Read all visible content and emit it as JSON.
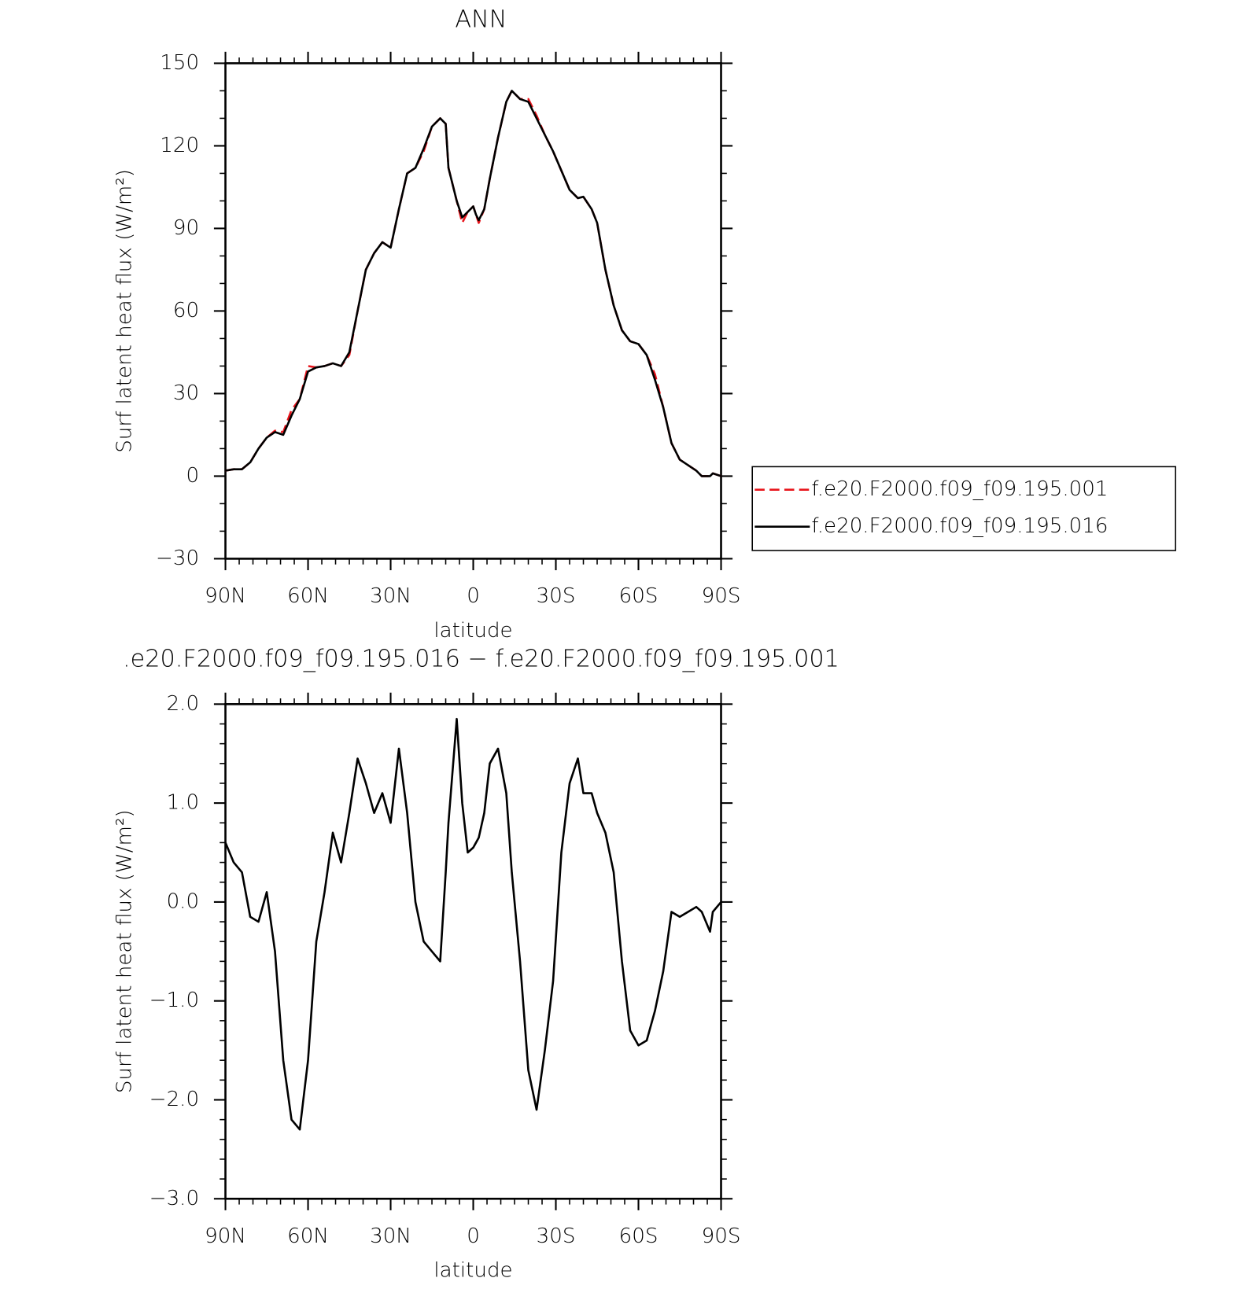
{
  "chart_data": [
    {
      "type": "line",
      "title": "ANN",
      "xlabel": "latitude",
      "ylabel": "Surf latent heat flux (W/m²)",
      "x": [
        90,
        87,
        84,
        81,
        78,
        75,
        72,
        69,
        66,
        63,
        60,
        57,
        54,
        51,
        48,
        45,
        42,
        39,
        36,
        33,
        30,
        27,
        24,
        21,
        18,
        15,
        12,
        10,
        9,
        6,
        4,
        2,
        0,
        -1,
        -2,
        -4,
        -6,
        -9,
        -12,
        -14,
        -17,
        -20,
        -23,
        -26,
        -29,
        -32,
        -35,
        -38,
        -40,
        -43,
        -45,
        -48,
        -51,
        -54,
        -57,
        -60,
        -63,
        -66,
        -69,
        -72,
        -75,
        -78,
        -81,
        -83,
        -86,
        -87,
        -90
      ],
      "series": [
        {
          "name": "f.e20.F2000.f09_f09.195.001",
          "color": "#e8141b",
          "dash": true,
          "values": [
            2,
            2.5,
            2.5,
            5,
            10,
            14,
            16.5,
            16,
            24,
            28,
            40,
            39.5,
            40,
            41,
            40,
            44,
            60,
            75,
            81,
            85,
            83,
            97,
            110,
            112,
            118,
            127,
            130,
            128,
            112,
            100,
            92,
            96,
            98,
            95,
            92,
            97,
            108,
            123,
            136,
            140,
            137,
            137,
            131,
            124,
            118,
            111,
            104,
            101,
            101.5,
            97,
            92,
            75,
            62,
            53,
            49,
            48,
            44,
            37,
            25,
            12,
            6,
            4,
            2,
            0,
            0,
            1,
            0
          ]
        },
        {
          "name": "f.e20.F2000.f09_f09.195.016",
          "color": "#000000",
          "dash": false,
          "values": [
            2,
            2.5,
            2.5,
            5,
            10,
            14,
            16,
            15,
            22,
            28,
            38,
            39.5,
            40,
            41,
            40,
            45,
            60,
            75,
            81,
            85,
            83,
            97,
            110,
            112,
            119,
            127,
            130,
            128,
            112,
            100,
            94,
            96,
            98,
            95,
            93,
            97,
            108,
            123,
            136,
            140,
            137,
            136,
            130,
            124,
            118,
            111,
            104,
            101,
            101.5,
            97,
            92,
            75,
            62,
            53,
            49,
            48,
            44,
            35,
            25,
            12,
            6,
            4,
            2,
            0,
            0,
            1,
            0
          ]
        }
      ],
      "xlim": [
        90,
        -90
      ],
      "xticks": [
        {
          "value": 90,
          "label": "90N"
        },
        {
          "value": 60,
          "label": "60N"
        },
        {
          "value": 30,
          "label": "30N"
        },
        0,
        {
          "value": -30,
          "label": "30S"
        },
        {
          "value": -60,
          "label": "60S"
        },
        {
          "value": -90,
          "label": "90S"
        }
      ],
      "ylim": [
        -30,
        150
      ],
      "yticks": [
        {
          "value": -30,
          "label": "−30"
        },
        0,
        30,
        60,
        90,
        120,
        150
      ],
      "legend": "right"
    },
    {
      "type": "line",
      "title": ".e20.F2000.f09_f09.195.016 − f.e20.F2000.f09_f09.195.001",
      "xlabel": "latitude",
      "ylabel": "Surf latent heat flux (W/m²)",
      "x": [
        90,
        87,
        84,
        81,
        78,
        75,
        72,
        69,
        66,
        63,
        60,
        57,
        54,
        51,
        48,
        45,
        42,
        39,
        36,
        33,
        30,
        27,
        24,
        21,
        18,
        15,
        12,
        10,
        9,
        6,
        4,
        2,
        0,
        -1,
        -2,
        -4,
        -6,
        -9,
        -12,
        -14,
        -17,
        -20,
        -23,
        -26,
        -29,
        -32,
        -35,
        -38,
        -40,
        -43,
        -45,
        -48,
        -51,
        -54,
        -57,
        -60,
        -63,
        -66,
        -69,
        -72,
        -75,
        -78,
        -81,
        -83,
        -86,
        -87,
        -90
      ],
      "series": [
        {
          "color": "#000000",
          "dash": false,
          "values": [
            0.6,
            0.4,
            0.3,
            -0.15,
            -0.2,
            0.1,
            -0.5,
            -1.6,
            -2.2,
            -2.3,
            -1.6,
            -0.4,
            0.1,
            0.7,
            0.4,
            0.9,
            1.45,
            1.2,
            0.9,
            1.1,
            0.8,
            1.55,
            0.9,
            0.0,
            -0.4,
            -0.5,
            -0.6,
            0.3,
            0.8,
            1.85,
            1.0,
            0.5,
            0.55,
            0.6,
            0.65,
            0.9,
            1.4,
            1.55,
            1.1,
            0.3,
            -0.6,
            -1.7,
            -2.1,
            -1.5,
            -0.8,
            0.5,
            1.2,
            1.45,
            1.1,
            1.1,
            0.9,
            0.7,
            0.3,
            -0.6,
            -1.3,
            -1.45,
            -1.4,
            -1.1,
            -0.7,
            -0.1,
            -0.15,
            -0.1,
            -0.05,
            -0.1,
            -0.3,
            -0.1,
            0.0
          ]
        }
      ],
      "xlim": [
        90,
        -90
      ],
      "xticks": [
        {
          "value": 90,
          "label": "90N"
        },
        {
          "value": 60,
          "label": "60N"
        },
        {
          "value": 30,
          "label": "30N"
        },
        0,
        {
          "value": -30,
          "label": "30S"
        },
        {
          "value": -60,
          "label": "60S"
        },
        {
          "value": -90,
          "label": "90S"
        }
      ],
      "ylim": [
        -3,
        2
      ],
      "yticks": [
        {
          "value": -3,
          "label": "−3.0"
        },
        {
          "value": -2,
          "label": "−2.0"
        },
        {
          "value": -1,
          "label": "−1.0"
        },
        {
          "value": 0,
          "label": "0.0"
        },
        {
          "value": 1,
          "label": "1.0"
        },
        {
          "value": 2,
          "label": "2.0"
        }
      ]
    }
  ]
}
